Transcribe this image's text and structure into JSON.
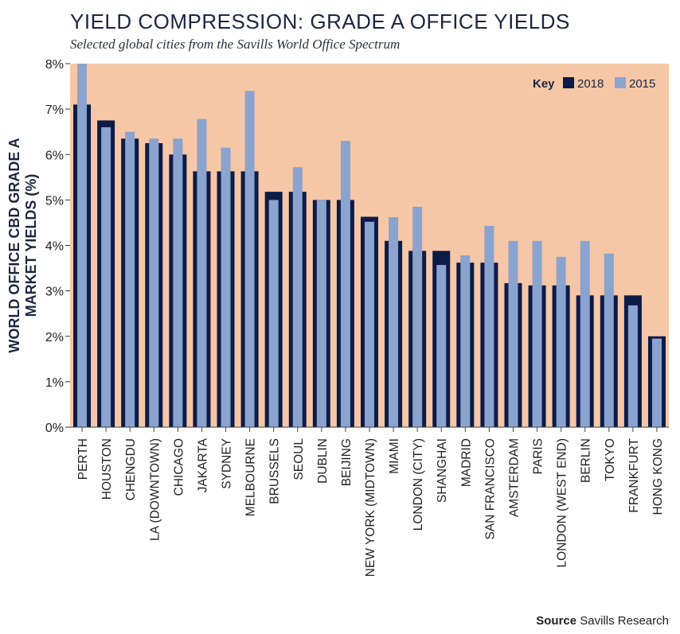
{
  "title": "YIELD COMPRESSION: GRADE A OFFICE YIELDS",
  "subtitle": "Selected global cities from the Savills World Office Spectrum",
  "source_label": "Source",
  "source_text": "Savills Research",
  "colors": {
    "background": "#f5c7a6",
    "series_2018": "#0d1b47",
    "series_2015": "#8ba3cf"
  },
  "chart_data": {
    "type": "bar",
    "ylabel_lines": [
      "WORLD OFFICE CBD GRADE A",
      "MARKET YIELDS (%)"
    ],
    "ylim": [
      0,
      8
    ],
    "yticks": [
      "0%",
      "1%",
      "2%",
      "3%",
      "4%",
      "5%",
      "6%",
      "7%",
      "8%"
    ],
    "grid": false,
    "legend": {
      "title": "Key",
      "placement": "top-right"
    },
    "categories": [
      "PERTH",
      "HOUSTON",
      "CHENGDU",
      "LA (DOWNTOWN)",
      "CHICAGO",
      "JAKARTA",
      "SYDNEY",
      "MELBOURNE",
      "BRUSSELS",
      "SEOUL",
      "DUBLIN",
      "BEIJING",
      "NEW YORK (MIDTOWN)",
      "MIAMI",
      "LONDON (CITY)",
      "SHANGHAI",
      "MADRID",
      "SAN FRANCISCO",
      "AMSTERDAM",
      "PARIS",
      "LONDON (WEST END)",
      "BERLIN",
      "TOKYO",
      "FRANKFURT",
      "HONG KONG"
    ],
    "series": [
      {
        "name": "2018",
        "values": [
          7.1,
          6.75,
          6.35,
          6.25,
          6.0,
          5.63,
          5.63,
          5.63,
          5.18,
          5.18,
          5.0,
          5.0,
          4.63,
          4.1,
          3.88,
          3.88,
          3.62,
          3.62,
          3.17,
          3.12,
          3.12,
          2.9,
          2.9,
          2.9,
          2.0
        ]
      },
      {
        "name": "2015",
        "values": [
          8.0,
          6.6,
          6.5,
          6.35,
          6.35,
          6.78,
          6.15,
          7.4,
          5.0,
          5.72,
          5.0,
          6.3,
          4.52,
          4.62,
          4.85,
          3.57,
          3.78,
          4.43,
          4.1,
          4.1,
          3.75,
          4.1,
          3.82,
          2.68,
          1.95
        ]
      }
    ]
  }
}
